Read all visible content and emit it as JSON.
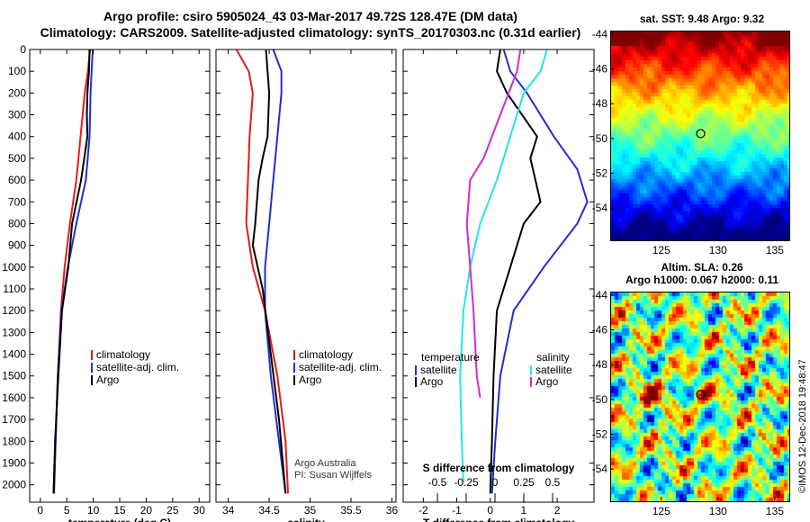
{
  "header": {
    "title_line1": "Argo profile: csiro 5905024_43 03-Mar-2017 49.72S 128.47E (DM data)",
    "title_line2": "Climatology: CARS2009. Satellite-adjusted climatology: synTS_20170303.nc (0.31d earlier)"
  },
  "colors": {
    "climatology": "#e51b1b",
    "satellite": "#1f2fd0",
    "argo": "#000000",
    "satellite_s": "#22e6e6",
    "climatology_s": "#d42ad4"
  },
  "chart_data": [
    {
      "id": "temperature",
      "type": "line",
      "xlabel": "temperature (deg C)",
      "ylabel": "",
      "xticks": [
        0,
        5,
        10,
        15,
        20,
        25,
        30
      ],
      "xlim": [
        -2,
        32
      ],
      "yticks": [
        0,
        100,
        200,
        300,
        400,
        500,
        600,
        700,
        800,
        900,
        1000,
        1100,
        1200,
        1300,
        1400,
        1500,
        1600,
        1700,
        1800,
        1900,
        2000
      ],
      "ylim": [
        0,
        2080
      ],
      "y_inverted": true,
      "series": [
        {
          "name": "climatology",
          "color": "#e51b1b",
          "x": [
            9.4,
            9.0,
            8.4,
            7.6,
            6.8,
            5.6,
            4.6,
            3.9,
            3.3,
            2.9,
            2.5
          ],
          "y": [
            0,
            100,
            200,
            400,
            600,
            800,
            1000,
            1200,
            1500,
            1800,
            2040
          ]
        },
        {
          "name": "satellite-adj. clim.",
          "color": "#1f2fd0",
          "x": [
            9.9,
            9.7,
            9.5,
            9.3,
            8.6,
            6.8,
            5.2,
            4.0,
            3.3,
            2.9,
            2.6
          ],
          "y": [
            0,
            100,
            200,
            400,
            600,
            800,
            1000,
            1200,
            1500,
            1800,
            2040
          ]
        },
        {
          "name": "Argo",
          "color": "#000000",
          "x": [
            9.3,
            9.2,
            8.9,
            8.8,
            8.9,
            7.7,
            6.0,
            5.3,
            4.1,
            3.4,
            2.8,
            2.5
          ],
          "y": [
            0,
            100,
            200,
            300,
            400,
            600,
            800,
            1000,
            1200,
            1500,
            1800,
            2040
          ]
        }
      ],
      "legend": {
        "items": [
          "climatology",
          "satellite-adj. clim.",
          "Argo"
        ],
        "position": "bottom-right"
      }
    },
    {
      "id": "salinity",
      "type": "line",
      "xlabel": "salinity",
      "xticks": [
        34,
        34.5,
        35,
        35.5,
        36
      ],
      "xlim": [
        33.85,
        36.05
      ],
      "ylim": [
        0,
        2080
      ],
      "y_inverted": true,
      "series": [
        {
          "name": "climatology",
          "color": "#e51b1b",
          "x": [
            34.1,
            34.25,
            34.3,
            34.26,
            34.24,
            34.22,
            34.3,
            34.45,
            34.6,
            34.7,
            34.73
          ],
          "y": [
            0,
            100,
            200,
            400,
            600,
            800,
            1000,
            1200,
            1500,
            1800,
            2040
          ]
        },
        {
          "name": "satellite-adj. clim.",
          "color": "#1f2fd0",
          "x": [
            34.55,
            34.65,
            34.65,
            34.6,
            34.55,
            34.5,
            34.45,
            34.45,
            34.52,
            34.62,
            34.7
          ],
          "y": [
            0,
            100,
            200,
            400,
            600,
            800,
            1000,
            1200,
            1500,
            1800,
            2040
          ]
        },
        {
          "name": "Argo",
          "color": "#000000",
          "x": [
            34.46,
            34.48,
            34.5,
            34.48,
            34.42,
            34.37,
            34.33,
            34.3,
            34.42,
            34.52,
            34.62,
            34.7
          ],
          "y": [
            0,
            100,
            200,
            400,
            500,
            600,
            800,
            900,
            1100,
            1400,
            1700,
            2040
          ]
        }
      ],
      "legend": {
        "items": [
          "climatology",
          "satellite-adj. clim.",
          "Argo"
        ],
        "position": "bottom-right"
      },
      "annotations": [
        "Argo Australia",
        "PI: Susan Wijffels"
      ]
    },
    {
      "id": "differences",
      "type": "line",
      "xlabel": "T difference from climatology",
      "xlabel2": "S difference from climatology",
      "xticks": [
        -2,
        -1,
        0,
        1,
        2
      ],
      "xticks2": [
        -0.5,
        -0.25,
        0,
        0.25,
        0.5
      ],
      "xticks2_labels": [
        "-0.5",
        "-0.25",
        "0",
        "0.25",
        "0.5"
      ],
      "xlim": [
        -2.6,
        3.1
      ],
      "ylim": [
        0,
        2080
      ],
      "y_inverted": true,
      "series": [
        {
          "name": "temperature satellite",
          "color": "#1f2fd0",
          "x": [
            0.4,
            0.6,
            1.1,
            1.9,
            2.6,
            2.9,
            2.6,
            1.6,
            0.7,
            0.3,
            0.15,
            0.05
          ],
          "y": [
            0,
            100,
            200,
            400,
            550,
            700,
            800,
            1000,
            1200,
            1500,
            1800,
            2040
          ]
        },
        {
          "name": "temperature Argo",
          "color": "#000000",
          "x": [
            0.3,
            0.2,
            0.5,
            1.4,
            1.2,
            1.5,
            1.0,
            0.6,
            0.2,
            0.1,
            0.05,
            0.0
          ],
          "y": [
            0,
            100,
            200,
            400,
            500,
            700,
            800,
            1000,
            1200,
            1500,
            1800,
            2040
          ]
        },
        {
          "name": "salinity satellite",
          "color": "#22e6e6",
          "x": [
            1.7,
            1.5,
            1.0,
            0.6,
            0.2,
            -0.3,
            -0.6,
            -0.8,
            -0.9,
            -0.85,
            -0.8
          ],
          "y": [
            0,
            100,
            200,
            400,
            600,
            800,
            1000,
            1200,
            1500,
            1800,
            1990
          ]
        },
        {
          "name": "salinity Argo",
          "color": "#d42ad4",
          "x": [
            0.9,
            0.8,
            0.3,
            -0.2,
            -0.6,
            -0.7,
            -0.6,
            -0.5,
            -0.4,
            -0.3
          ],
          "y": [
            0,
            100,
            300,
            500,
            600,
            800,
            1000,
            1200,
            1500,
            1600
          ]
        }
      ],
      "legend": {
        "left_title": "temperature",
        "right_title": "salinity",
        "left_items": [
          "satellite",
          "Argo"
        ],
        "right_items": [
          "satellite",
          "Argo"
        ]
      }
    }
  ],
  "maps": {
    "sst": {
      "title": "sat. SST: 9.48 Argo: 9.32",
      "xticks": [
        125,
        130,
        135
      ],
      "yticks": [
        -44,
        -46,
        -48,
        -50,
        -52,
        -54
      ]
    },
    "sla": {
      "title_line1": "Altim. SLA: 0.26",
      "title_line2": "Argo h1000: 0.067 h2000: 0.11",
      "xticks": [
        125,
        130,
        135
      ],
      "yticks": [
        -44,
        -46,
        -48,
        -50,
        -52,
        -54
      ]
    },
    "extent": {
      "lon": [
        120.5,
        136.2
      ],
      "lat": [
        -55.8,
        -43.8
      ]
    },
    "float_position": {
      "lat": -49.72,
      "lon": 128.47
    }
  },
  "footer": {
    "credit": "©IMOS 12-Dec-2018 19:48:47"
  }
}
